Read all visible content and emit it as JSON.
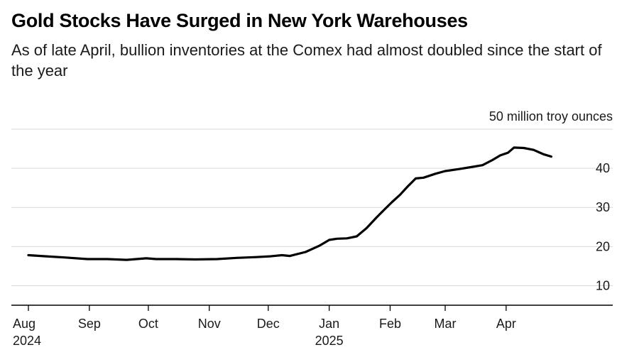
{
  "title": "Gold Stocks Have Surged in New York Warehouses",
  "subtitle": "As of late April, bullion inventories at the Comex had almost doubled since the start of the year",
  "chart_data": {
    "type": "line",
    "unit_label": "50 million troy ounces",
    "ylim": [
      5,
      50
    ],
    "yticks": [
      {
        "value": 50,
        "label": "50 million troy ounces"
      },
      {
        "value": 40,
        "label": "40"
      },
      {
        "value": 30,
        "label": "30"
      },
      {
        "value": 20,
        "label": "20"
      },
      {
        "value": 10,
        "label": "10"
      }
    ],
    "xlim": [
      "2024-08-01",
      "2025-05-18"
    ],
    "xticks": [
      {
        "date": "2024-08-01",
        "label": "Aug",
        "sublabel": "2024"
      },
      {
        "date": "2024-09-01",
        "label": "Sep",
        "sublabel": ""
      },
      {
        "date": "2024-10-01",
        "label": "Oct",
        "sublabel": ""
      },
      {
        "date": "2024-11-01",
        "label": "Nov",
        "sublabel": ""
      },
      {
        "date": "2024-12-01",
        "label": "Dec",
        "sublabel": ""
      },
      {
        "date": "2025-01-01",
        "label": "Jan",
        "sublabel": "2025"
      },
      {
        "date": "2025-02-01",
        "label": "Feb",
        "sublabel": ""
      },
      {
        "date": "2025-03-01",
        "label": "Mar",
        "sublabel": ""
      },
      {
        "date": "2025-04-01",
        "label": "Apr",
        "sublabel": ""
      }
    ],
    "grid": true,
    "line_color": "#000000",
    "grid_color": "#d9d9d9",
    "series": [
      {
        "x": [
          "2024-08-01",
          "2024-08-10",
          "2024-08-20",
          "2024-08-31",
          "2024-09-10",
          "2024-09-20",
          "2024-09-30",
          "2024-10-05",
          "2024-10-15",
          "2024-10-25",
          "2024-11-05",
          "2024-11-15",
          "2024-11-25",
          "2024-12-02",
          "2024-12-08",
          "2024-12-12",
          "2024-12-20",
          "2024-12-27",
          "2025-01-01",
          "2025-01-05",
          "2025-01-10",
          "2025-01-15",
          "2025-01-20",
          "2025-01-25",
          "2025-01-28",
          "2025-02-02",
          "2025-02-06",
          "2025-02-10",
          "2025-02-14",
          "2025-02-18",
          "2025-02-24",
          "2025-03-01",
          "2025-03-08",
          "2025-03-14",
          "2025-03-20",
          "2025-03-25",
          "2025-03-29",
          "2025-04-02",
          "2025-04-05",
          "2025-04-10",
          "2025-04-15",
          "2025-04-20",
          "2025-04-24"
        ],
        "y": [
          17.8,
          17.5,
          17.2,
          16.8,
          16.8,
          16.6,
          17.0,
          16.8,
          16.8,
          16.7,
          16.8,
          17.1,
          17.3,
          17.5,
          17.8,
          17.6,
          18.6,
          20.2,
          21.7,
          22.0,
          22.1,
          22.6,
          24.7,
          27.4,
          28.9,
          31.4,
          33.2,
          35.4,
          37.4,
          37.6,
          38.6,
          39.3,
          39.8,
          40.3,
          40.8,
          42.1,
          43.3,
          44.0,
          45.3,
          45.2,
          44.7,
          43.6,
          43.0
        ]
      }
    ]
  }
}
